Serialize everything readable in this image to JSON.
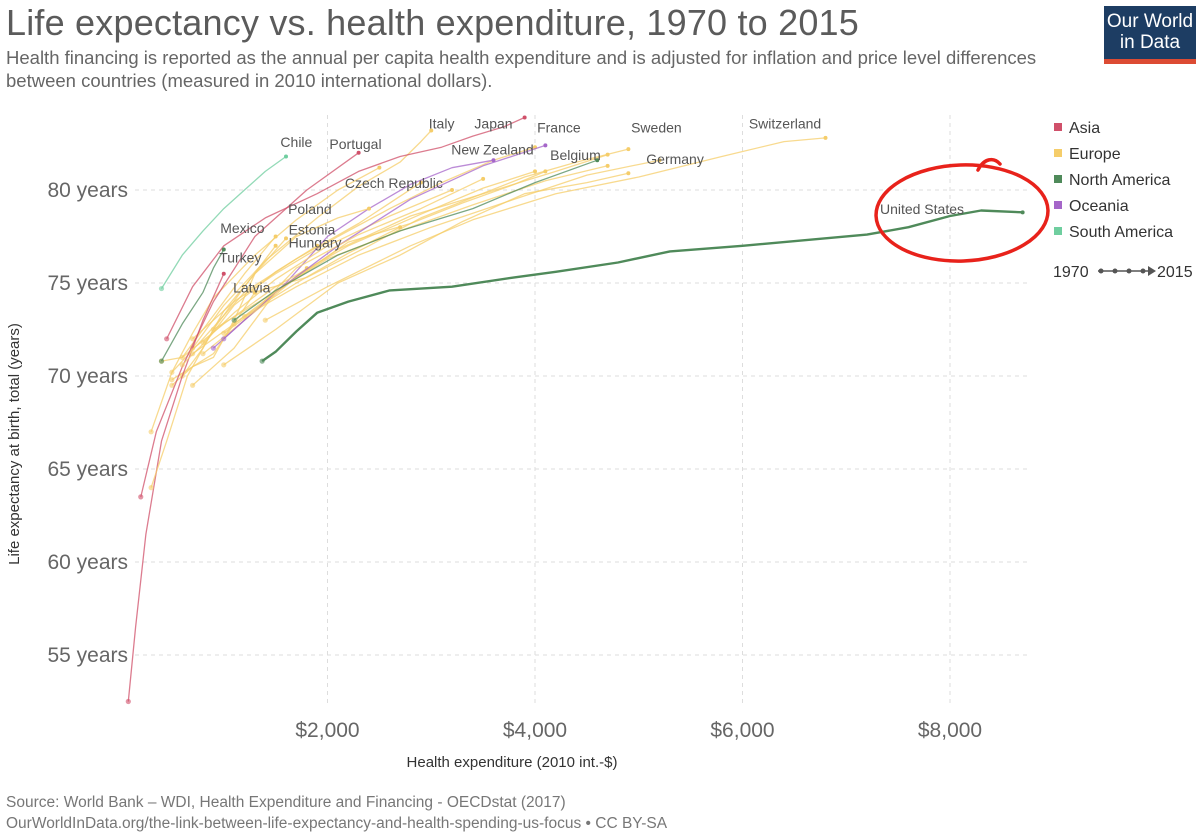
{
  "header": {
    "title": "Life expectancy vs. health expenditure, 1970 to 2015",
    "subtitle": "Health financing is reported as the annual per capita health expenditure and is adjusted for inflation and price level differences between countries (measured in 2010 international dollars).",
    "logo_line1": "Our World",
    "logo_line2": "in Data"
  },
  "chart_data": {
    "type": "line",
    "xlabel": "Health expenditure (2010 int.-$)",
    "ylabel": "Life expectancy at birth, total (years)",
    "xlim": [
      0,
      9000
    ],
    "ylim": [
      52,
      85
    ],
    "x_ticks": [
      {
        "value": 2000,
        "label": "$2,000"
      },
      {
        "value": 4000,
        "label": "$4,000"
      },
      {
        "value": 6000,
        "label": "$6,000"
      },
      {
        "value": 8000,
        "label": "$8,000"
      }
    ],
    "y_ticks": [
      {
        "value": 55,
        "label": "55 years"
      },
      {
        "value": 60,
        "label": "60 years"
      },
      {
        "value": 65,
        "label": "65 years"
      },
      {
        "value": 70,
        "label": "70 years"
      },
      {
        "value": 75,
        "label": "75 years"
      },
      {
        "value": 80,
        "label": "80 years"
      }
    ],
    "grid": true,
    "legend_position": "right",
    "legend": [
      {
        "name": "Asia",
        "color": "#d0506a"
      },
      {
        "name": "Europe",
        "color": "#f5cd6a"
      },
      {
        "name": "North America",
        "color": "#4f8a5a"
      },
      {
        "name": "Oceania",
        "color": "#a566c9"
      },
      {
        "name": "South America",
        "color": "#6fce9f"
      }
    ],
    "time_legend": {
      "start": "1970",
      "end": "2015"
    },
    "annotation": {
      "label": "United States",
      "color": "#e8221b"
    },
    "series": [
      {
        "name": "United States",
        "region": "North America",
        "x": [
          1370,
          1500,
          1700,
          1900,
          2200,
          2600,
          3200,
          3800,
          4200,
          4800,
          5300,
          6000,
          7200,
          7600,
          8000,
          8300,
          8700
        ],
        "y": [
          70.8,
          71.3,
          72.4,
          73.4,
          74.0,
          74.6,
          74.8,
          75.3,
          75.6,
          76.1,
          76.7,
          77.0,
          77.6,
          78.0,
          78.6,
          78.9,
          78.8
        ]
      },
      {
        "name": "Switzerland",
        "region": "Europe",
        "x": [
          1400,
          2000,
          2800,
          3400,
          4200,
          5000,
          5800,
          6400,
          6800
        ],
        "y": [
          73.0,
          74.8,
          77.0,
          78.4,
          79.8,
          80.7,
          81.8,
          82.6,
          82.8
        ]
      },
      {
        "name": "Sweden",
        "region": "Europe",
        "x": [
          1300,
          1800,
          2400,
          2900,
          3400,
          3900,
          4400,
          4900
        ],
        "y": [
          74.5,
          75.3,
          77.0,
          78.5,
          79.6,
          80.7,
          81.5,
          82.2
        ]
      },
      {
        "name": "Germany",
        "region": "Europe",
        "x": [
          1000,
          1500,
          2100,
          2700,
          3300,
          3900,
          4500,
          4900
        ],
        "y": [
          70.6,
          72.5,
          75.0,
          76.5,
          78.3,
          79.8,
          80.4,
          80.9
        ]
      },
      {
        "name": "France",
        "region": "Europe",
        "x": [
          700,
          1100,
          1500,
          2100,
          2600,
          3100,
          3600,
          4000
        ],
        "y": [
          72.0,
          74.0,
          75.5,
          77.5,
          79.0,
          80.4,
          81.6,
          82.3
        ]
      },
      {
        "name": "Belgium",
        "region": "Europe",
        "x": [
          800,
          1200,
          1700,
          2200,
          2800,
          3300,
          3800,
          4100
        ],
        "y": [
          71.2,
          73.0,
          75.3,
          77.2,
          78.2,
          79.3,
          80.3,
          81.0
        ]
      },
      {
        "name": "Italy",
        "region": "Europe",
        "x": [
          700,
          1000,
          1400,
          1900,
          2300,
          2700,
          2900,
          3000
        ],
        "y": [
          71.5,
          73.8,
          76.2,
          78.5,
          80.2,
          81.5,
          82.6,
          83.2
        ]
      },
      {
        "name": "Japan",
        "region": "Asia",
        "x": [
          450,
          700,
          1000,
          1400,
          1900,
          2300,
          2700,
          3100,
          3400,
          3700,
          3900
        ],
        "y": [
          72.0,
          74.8,
          77.0,
          78.5,
          79.8,
          81.0,
          81.8,
          82.3,
          82.9,
          83.4,
          83.9
        ]
      },
      {
        "name": "Portugal",
        "region": "Europe",
        "x": [
          300,
          500,
          700,
          900,
          1300,
          1700,
          2100,
          2500
        ],
        "y": [
          67.0,
          70.2,
          72.3,
          74.2,
          76.5,
          78.4,
          80.0,
          81.2
        ]
      },
      {
        "name": "New Zealand",
        "region": "Oceania",
        "x": [
          900,
          1200,
          1600,
          2000,
          2400,
          2800,
          3200,
          3600
        ],
        "y": [
          71.5,
          73.0,
          75.0,
          77.5,
          79.0,
          80.3,
          81.2,
          81.6
        ]
      },
      {
        "name": "Czech Republic",
        "region": "Europe",
        "x": [
          600,
          800,
          1000,
          1300,
          1700,
          2100,
          2400
        ],
        "y": [
          70.0,
          71.5,
          73.5,
          75.5,
          77.5,
          78.5,
          79.0
        ]
      },
      {
        "name": "Poland",
        "region": "Europe",
        "x": [
          400,
          600,
          800,
          1000,
          1200,
          1500
        ],
        "y": [
          70.8,
          71.0,
          72.5,
          74.0,
          75.5,
          77.5
        ]
      },
      {
        "name": "Estonia",
        "region": "Europe",
        "x": [
          500,
          700,
          900,
          1100,
          1300,
          1600
        ],
        "y": [
          69.5,
          70.5,
          71.0,
          73.0,
          75.5,
          77.4
        ]
      },
      {
        "name": "Hungary",
        "region": "Europe",
        "x": [
          700,
          900,
          1100,
          1300,
          1500,
          1800
        ],
        "y": [
          69.5,
          70.5,
          71.5,
          73.0,
          74.5,
          75.8
        ]
      },
      {
        "name": "Latvia",
        "region": "Europe",
        "x": [
          500,
          700,
          900,
          1100,
          1300
        ],
        "y": [
          69.8,
          70.5,
          71.2,
          72.8,
          74.5
        ]
      },
      {
        "name": "Mexico",
        "region": "North America",
        "x": [
          400,
          600,
          800,
          900,
          1000
        ],
        "y": [
          70.8,
          72.8,
          74.5,
          75.8,
          76.8
        ]
      },
      {
        "name": "Turkey",
        "region": "Asia",
        "x": [
          80,
          150,
          250,
          400,
          600,
          800,
          1000
        ],
        "y": [
          52.5,
          56.5,
          61.5,
          66.5,
          70.0,
          73.0,
          75.5
        ]
      },
      {
        "name": "Chile",
        "region": "South America",
        "x": [
          400,
          600,
          800,
          1000,
          1200,
          1400,
          1600
        ],
        "y": [
          74.7,
          76.5,
          77.8,
          79.0,
          80.0,
          81.0,
          81.8
        ]
      },
      {
        "name": "",
        "region": "Europe",
        "x": [
          600,
          1000,
          1500,
          2200,
          2900,
          3500,
          4000
        ],
        "y": [
          71.0,
          72.8,
          74.8,
          77.0,
          78.7,
          80.1,
          81.0
        ]
      },
      {
        "name": "",
        "region": "Europe",
        "x": [
          900,
          1400,
          2000,
          2700,
          3400,
          4100,
          4700
        ],
        "y": [
          72.5,
          74.2,
          76.3,
          77.8,
          79.2,
          80.5,
          81.3
        ]
      },
      {
        "name": "",
        "region": "Europe",
        "x": [
          800,
          1100,
          1500,
          2000,
          2600,
          3200
        ],
        "y": [
          71.8,
          73.4,
          75.2,
          77.0,
          78.6,
          80.0
        ]
      },
      {
        "name": "",
        "region": "Europe",
        "x": [
          500,
          800,
          1200,
          1700,
          2300,
          2900
        ],
        "y": [
          70.2,
          72.0,
          74.5,
          76.3,
          78.2,
          80.4
        ]
      },
      {
        "name": "",
        "region": "Europe",
        "x": [
          300,
          450,
          650,
          900,
          1200,
          1500
        ],
        "y": [
          64.0,
          66.5,
          70.0,
          72.5,
          74.8,
          77.0
        ]
      },
      {
        "name": "",
        "region": "Europe",
        "x": [
          1200,
          1700,
          2300,
          3000,
          3800,
          4500,
          5200
        ],
        "y": [
          73.2,
          74.8,
          76.5,
          78.0,
          79.5,
          80.8,
          81.6
        ]
      },
      {
        "name": "",
        "region": "Europe",
        "x": [
          700,
          950,
          1300,
          1700,
          2200,
          2700
        ],
        "y": [
          71.2,
          72.2,
          73.6,
          75.0,
          76.6,
          78.0
        ]
      },
      {
        "name": "",
        "region": "Oceania",
        "x": [
          1000,
          1500,
          2100,
          2800,
          3500,
          4100
        ],
        "y": [
          72.0,
          74.5,
          77.0,
          79.5,
          81.3,
          82.4
        ]
      },
      {
        "name": "",
        "region": "Asia",
        "x": [
          200,
          350,
          600,
          900,
          1300,
          1800,
          2300
        ],
        "y": [
          63.5,
          67.0,
          70.5,
          74.0,
          77.5,
          80.0,
          82.0
        ]
      },
      {
        "name": "",
        "region": "Europe",
        "x": [
          1100,
          1500,
          2100,
          2800,
          3500,
          4200,
          4700
        ],
        "y": [
          72.8,
          74.5,
          76.8,
          78.6,
          79.8,
          81.0,
          81.9
        ]
      },
      {
        "name": "",
        "region": "Europe",
        "x": [
          1000,
          1300,
          1700,
          2300,
          2900,
          3500
        ],
        "y": [
          72.3,
          73.5,
          75.8,
          77.6,
          79.0,
          80.6
        ]
      },
      {
        "name": "",
        "region": "Europe",
        "x": [
          600,
          850,
          1100,
          1500,
          1900
        ],
        "y": [
          70.6,
          72.0,
          73.8,
          75.6,
          77.0
        ]
      },
      {
        "name": "",
        "region": "North America",
        "x": [
          1100,
          1500,
          2100,
          2700,
          3400,
          4000,
          4600
        ],
        "y": [
          73.0,
          74.6,
          76.5,
          77.8,
          79.0,
          80.4,
          81.6
        ]
      }
    ],
    "country_labels": [
      {
        "text": "Chile",
        "x": 1700,
        "y": 82.3
      },
      {
        "text": "Portugal",
        "x": 2270,
        "y": 82.2
      },
      {
        "text": "Italy",
        "x": 3100,
        "y": 83.3
      },
      {
        "text": "Japan",
        "x": 3600,
        "y": 83.3
      },
      {
        "text": "France",
        "x": 4230,
        "y": 83.1
      },
      {
        "text": "Sweden",
        "x": 5170,
        "y": 83.1
      },
      {
        "text": "Switzerland",
        "x": 6410,
        "y": 83.3
      },
      {
        "text": "New Zealand",
        "x": 3590,
        "y": 81.9
      },
      {
        "text": "Belgium",
        "x": 4390,
        "y": 81.6
      },
      {
        "text": "Germany",
        "x": 5350,
        "y": 81.4
      },
      {
        "text": "Czech Republic",
        "x": 2640,
        "y": 80.1
      },
      {
        "text": "Poland",
        "x": 1830,
        "y": 78.7
      },
      {
        "text": "Mexico",
        "x": 1180,
        "y": 77.7
      },
      {
        "text": "Estonia",
        "x": 1850,
        "y": 77.6
      },
      {
        "text": "Hungary",
        "x": 1880,
        "y": 76.9
      },
      {
        "text": "Turkey",
        "x": 1160,
        "y": 76.1
      },
      {
        "text": "Latvia",
        "x": 1270,
        "y": 74.5
      },
      {
        "text": "United States",
        "x": 7730,
        "y": 78.7
      }
    ]
  },
  "footer": {
    "source": "Source: World Bank – WDI, Health Expenditure and Financing - OECDstat (2017)",
    "url_license": "OurWorldInData.org/the-link-between-life-expectancy-and-health-spending-us-focus • CC BY-SA"
  }
}
